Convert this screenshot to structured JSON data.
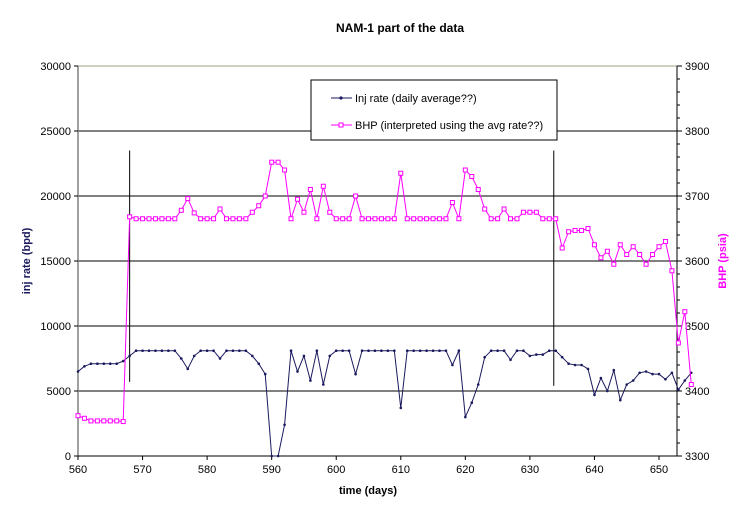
{
  "chart_data": {
    "type": "line",
    "title": "NAM-1 part of the data",
    "xlabel": "time (days)",
    "ylabel": "inj rate (bpd)",
    "y2label": "BHP (psia)",
    "xlim": [
      560,
      655
    ],
    "ylim": [
      0,
      30000
    ],
    "y2lim": [
      3300,
      3900
    ],
    "xticks": [
      560,
      570,
      580,
      590,
      600,
      610,
      620,
      630,
      640,
      650
    ],
    "yticks": [
      0,
      5000,
      10000,
      15000,
      20000,
      25000,
      30000
    ],
    "y2ticks": [
      3300,
      3400,
      3500,
      3600,
      3700,
      3800,
      3900
    ],
    "grid": "horizontal major gridlines",
    "legend_position": "top-center inside plot",
    "x": [
      560,
      561,
      562,
      563,
      564,
      565,
      566,
      567,
      568,
      569,
      570,
      571,
      572,
      573,
      574,
      575,
      576,
      577,
      578,
      579,
      580,
      581,
      582,
      583,
      584,
      585,
      586,
      587,
      588,
      589,
      590,
      591,
      592,
      593,
      594,
      595,
      596,
      597,
      598,
      599,
      600,
      601,
      602,
      603,
      604,
      605,
      606,
      607,
      608,
      609,
      610,
      611,
      612,
      613,
      614,
      615,
      616,
      617,
      618,
      619,
      620,
      621,
      622,
      623,
      624,
      625,
      626,
      627,
      628,
      629,
      630,
      631,
      632,
      633,
      634,
      635,
      636,
      637,
      638,
      639,
      640,
      641,
      642,
      643,
      644,
      645,
      646,
      647,
      648,
      649,
      650,
      651,
      652,
      653,
      654,
      655
    ],
    "series": [
      {
        "name": "Inj rate (daily average??)",
        "axis": "left",
        "color": "#1a1a5e",
        "marker": "dot",
        "values": [
          6500,
          6900,
          7100,
          7100,
          7100,
          7100,
          7100,
          7300,
          7700,
          8100,
          8100,
          8100,
          8100,
          8100,
          8100,
          8100,
          7500,
          6700,
          7700,
          8100,
          8100,
          8100,
          7500,
          8100,
          8100,
          8100,
          8100,
          7700,
          7100,
          6300,
          0,
          0,
          2400,
          8100,
          6500,
          7700,
          5800,
          8100,
          5500,
          7700,
          8100,
          8100,
          8100,
          6300,
          8100,
          8100,
          8100,
          8100,
          8100,
          8100,
          3700,
          8100,
          8100,
          8100,
          8100,
          8100,
          8100,
          8100,
          7000,
          8100,
          3000,
          4100,
          5500,
          7600,
          8100,
          8100,
          8100,
          7400,
          8100,
          8100,
          7700,
          7800,
          7800,
          8100,
          8100,
          7600,
          7100,
          7000,
          7000,
          6700,
          4700,
          6000,
          5000,
          6600,
          4300,
          5500,
          5800,
          6400,
          6500,
          6300,
          6300,
          5900,
          6400,
          5100,
          5800,
          6400
        ]
      },
      {
        "name": "BHP (interpreted using the avg rate??)",
        "axis": "right",
        "color": "#ff00ff",
        "marker": "open-square",
        "values": [
          3362,
          3358,
          3354,
          3354,
          3354,
          3354,
          3354,
          3353,
          3668,
          3665,
          3665,
          3665,
          3665,
          3665,
          3665,
          3665,
          3678,
          3696,
          3674,
          3665,
          3665,
          3665,
          3680,
          3665,
          3665,
          3665,
          3665,
          3675,
          3685,
          3700,
          3752,
          3752,
          3740,
          3665,
          3695,
          3675,
          3710,
          3665,
          3715,
          3675,
          3665,
          3665,
          3665,
          3700,
          3665,
          3665,
          3665,
          3665,
          3665,
          3665,
          3735,
          3665,
          3665,
          3665,
          3665,
          3665,
          3665,
          3665,
          3690,
          3665,
          3740,
          3730,
          3710,
          3680,
          3665,
          3665,
          3680,
          3665,
          3665,
          3675,
          3675,
          3675,
          3665,
          3665,
          3665,
          3620,
          3645,
          3647,
          3647,
          3650,
          3625,
          3605,
          3615,
          3595,
          3625,
          3610,
          3622,
          3610,
          3595,
          3610,
          3622,
          3630,
          3585,
          3474,
          3522,
          3410
        ]
      }
    ],
    "annotations": [
      {
        "type": "vertical-line",
        "x": 568,
        "y_from_inj": 5700,
        "y_to_inj": 23500
      },
      {
        "type": "vertical-line",
        "x": 633.7,
        "y_from_inj": 5400,
        "y_to_inj": 23500
      }
    ]
  },
  "colors": {
    "inj_rate": "#1a1a5e",
    "bhp": "#ff00ff",
    "bhp_axis_label": "#ff00ff",
    "inj_axis_label": "#1a1a5e",
    "gridline": "#000000",
    "top_border": "#a0a080"
  }
}
